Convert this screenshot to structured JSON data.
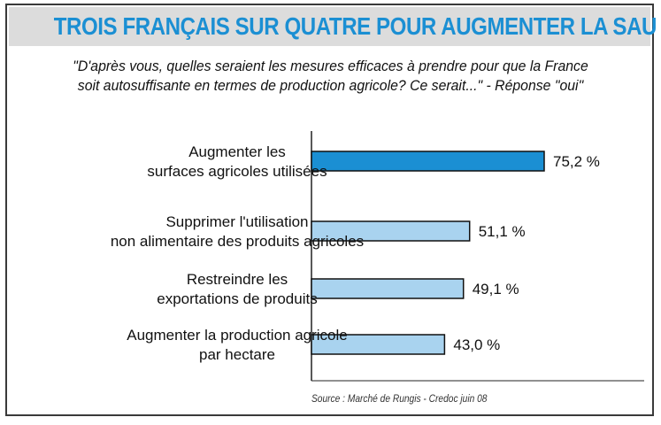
{
  "header": {
    "title": "TROIS FRANÇAIS SUR QUATRE POUR AUGMENTER LA SAU",
    "question": "\"D'après vous, quelles seraient les mesures efficaces à prendre pour que la France\nsoit autosuffisante en termes de production agricole? Ce serait...\" - Réponse \"oui\""
  },
  "footer": {
    "source": "Source : Marché de Rungis - Credoc juin 08"
  },
  "colors": {
    "highlight_bar": "#1b8fd3",
    "bar": "#a9d3ef",
    "bar_outline": "#111111",
    "title": "#1b8fd3"
  },
  "chart_data": {
    "type": "bar",
    "orientation": "horizontal",
    "categories": [
      [
        "Augmenter les",
        "surfaces agricoles utilisées"
      ],
      [
        "Supprimer l'utilisation",
        "non alimentaire des produits agricoles"
      ],
      [
        "Restreindre les",
        "exportations de produits"
      ],
      [
        "Augmenter la production agricole",
        "par hectare"
      ]
    ],
    "values": [
      75.2,
      51.1,
      49.1,
      43.0
    ],
    "value_labels": [
      "75,2 %",
      "51,1 %",
      "49,1 %",
      "43,0 %"
    ],
    "highlight_index": 0,
    "xlim": [
      0,
      100
    ],
    "grid": false,
    "legend": "none"
  }
}
